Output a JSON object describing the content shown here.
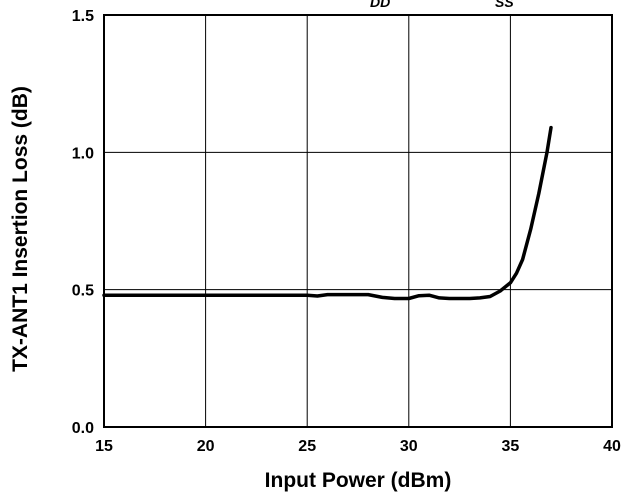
{
  "chart_data": {
    "type": "line",
    "title": "",
    "top_labels": [
      "DD",
      "SS"
    ],
    "xlabel": "Input Power   (dBm)",
    "ylabel": "TX-ANT1 Insertion Loss  (dB)",
    "xlim": [
      15,
      40
    ],
    "ylim": [
      0.0,
      1.5
    ],
    "xticks": [
      15,
      20,
      25,
      30,
      35,
      40
    ],
    "xtick_labels": [
      "15",
      "20",
      "25",
      "30",
      "35",
      "40"
    ],
    "yticks": [
      0.0,
      0.5,
      1.0,
      1.5
    ],
    "ytick_labels": [
      "0.0",
      "0.5",
      "1.0",
      "1.5"
    ],
    "grid": true,
    "legend": "none",
    "series": [
      {
        "x": [
          15,
          20,
          25,
          25.5,
          26,
          27,
          28,
          28.7,
          29.3,
          30,
          30.5,
          31,
          31.5,
          32,
          33,
          33.5,
          34,
          34.5,
          35,
          35.3,
          35.6,
          36,
          36.4,
          36.8,
          37
        ],
        "y": [
          0.48,
          0.48,
          0.48,
          0.477,
          0.482,
          0.482,
          0.482,
          0.472,
          0.468,
          0.468,
          0.478,
          0.48,
          0.47,
          0.468,
          0.468,
          0.47,
          0.475,
          0.495,
          0.525,
          0.56,
          0.61,
          0.72,
          0.85,
          1.0,
          1.09
        ]
      }
    ]
  }
}
